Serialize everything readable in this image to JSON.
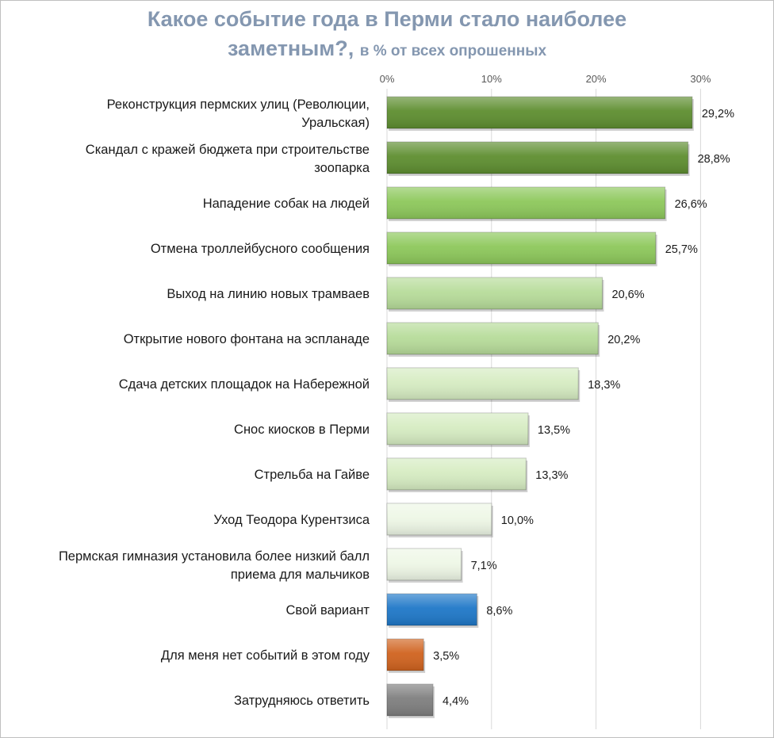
{
  "title": {
    "main_line1": "Какое событие года в Перми стало наиболее",
    "main_line2": "заметным?,",
    "subtitle": "в % от всех опрошенных"
  },
  "chart_data": {
    "type": "bar",
    "orientation": "horizontal",
    "title": "Какое событие года в Перми стало наиболее заметным?,",
    "subtitle": "в % от всех опрошенных",
    "xlim": [
      0,
      30
    ],
    "x_ticks": [
      "0%",
      "10%",
      "20%",
      "30%"
    ],
    "gridlines": true,
    "categories": [
      [
        "Реконструкция пермских улиц (Революции,",
        "Уральская)"
      ],
      [
        "Скандал с кражей бюджета при строительстве",
        "зоопарка"
      ],
      [
        "Нападение собак на людей"
      ],
      [
        "Отмена троллейбусного сообщения"
      ],
      [
        "Выход на линию новых трамваев"
      ],
      [
        "Открытие нового фонтана на эспланаде"
      ],
      [
        "Сдача детских площадок на Набережной"
      ],
      [
        "Снос киосков в Перми"
      ],
      [
        "Стрельба на Гайве"
      ],
      [
        "Уход Теодора Курентзиса"
      ],
      [
        "Пермская гимназия установила более низкий балл",
        "приема для мальчиков"
      ],
      [
        "Свой вариант"
      ],
      [
        "Для меня нет событий в этом году"
      ],
      [
        "Затрудняюсь ответить"
      ]
    ],
    "values": [
      29.2,
      28.8,
      26.6,
      25.7,
      20.6,
      20.2,
      18.3,
      13.5,
      13.3,
      10.0,
      7.1,
      8.6,
      3.5,
      4.4
    ],
    "value_labels": [
      "29,2%",
      "28,8%",
      "26,6%",
      "25,7%",
      "20,6%",
      "20,2%",
      "18,3%",
      "13,5%",
      "13,3%",
      "10,0%",
      "7,1%",
      "8,6%",
      "3,5%",
      "4,4%"
    ],
    "bar_colors": [
      "#5e8e30",
      "#5e8e30",
      "#8dc85b",
      "#8dc85b",
      "#b7dc9a",
      "#b7dc9a",
      "#d6ecc2",
      "#d6ecc2",
      "#d6ecc2",
      "#eef7e6",
      "#eef7e6",
      "#1f78c8",
      "#d0631f",
      "#7f7f7f"
    ]
  }
}
